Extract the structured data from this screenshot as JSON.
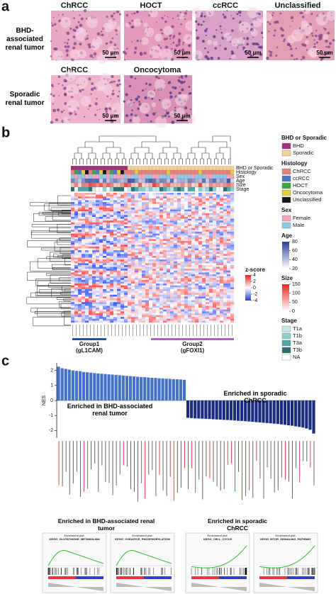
{
  "panel_a": {
    "label": "a",
    "row1": {
      "label": "BHD-associated renal tumor",
      "columns": [
        "ChRCC",
        "HOCT",
        "ccRCC",
        "Unclassified"
      ]
    },
    "row2": {
      "label": "Sporadic renal tumor",
      "columns": [
        "ChRCC",
        "Oncocytoma"
      ]
    },
    "scale_bar": "50 μm"
  },
  "panel_b": {
    "label": "b",
    "annotation_rows": [
      "BHD or Sporadic",
      "Histology",
      "Sex",
      "Age",
      "Size",
      "Stage"
    ],
    "groups": [
      {
        "name": "Group1",
        "gene": "(gL1CAM)",
        "color": "#1f4fa8"
      },
      {
        "name": "Group2",
        "gene": "(gFOXI1)",
        "color": "#b05fc4"
      }
    ],
    "zscore": {
      "title": "z-score",
      "ticks": [
        4,
        2,
        0,
        -2,
        -4
      ]
    },
    "legend": [
      {
        "title": "BHD or Sporadic",
        "items": [
          {
            "name": "BHD",
            "color": "#a0307a"
          },
          {
            "name": "Sporadic",
            "color": "#f1d59a"
          }
        ]
      },
      {
        "title": "Histology",
        "items": [
          {
            "name": "ChRCC",
            "color": "#e6827a"
          },
          {
            "name": "ccRCC",
            "color": "#4a78c4"
          },
          {
            "name": "HOCT",
            "color": "#3fa34a"
          },
          {
            "name": "Oncocytoma",
            "color": "#e3cd3a"
          },
          {
            "name": "Unclassified",
            "color": "#151515"
          }
        ]
      },
      {
        "title": "Sex",
        "items": [
          {
            "name": "Female",
            "color": "#f3a6c0"
          },
          {
            "name": "Male",
            "color": "#8ec9ec"
          }
        ]
      },
      {
        "title": "Age",
        "ticks": [
          80,
          60,
          40,
          20
        ],
        "color": "#2a3f9a"
      },
      {
        "title": "Size",
        "ticks": [
          150,
          100,
          50,
          0
        ],
        "color": "#e8251f"
      },
      {
        "title": "Stage",
        "items": [
          {
            "name": "T1a",
            "color": "#c8e8e6"
          },
          {
            "name": "T1b",
            "color": "#8fcfcc"
          },
          {
            "name": "T3a",
            "color": "#4ea7a5"
          },
          {
            "name": "T3b",
            "color": "#2f6f6e"
          },
          {
            "name": "NA",
            "color": "#ffffff"
          }
        ]
      }
    ]
  },
  "panel_c": {
    "label": "c",
    "nes": {
      "axis_label": "NES",
      "ylim": [
        -2.5,
        2.5
      ],
      "yticks": [
        2,
        1,
        0,
        -1,
        -2
      ],
      "bhd": {
        "label": "Enriched in BHD-associated renal tumor",
        "color": "#4472c4",
        "values": [
          2.25,
          2.15,
          2.1,
          2.05,
          2.0,
          1.97,
          1.95,
          1.9,
          1.88,
          1.85,
          1.82,
          1.8,
          1.78,
          1.76,
          1.74,
          1.72,
          1.7,
          1.68,
          1.66,
          1.64,
          1.62,
          1.6,
          1.58,
          1.56,
          1.55,
          1.53,
          1.51,
          1.5,
          1.48,
          1.47,
          1.45,
          1.44,
          1.42,
          1.41,
          1.4,
          1.38
        ]
      },
      "sporadic": {
        "label": "Enriched in sporadic ChRCC",
        "color": "#1b2d80",
        "values": [
          -1.15,
          -1.17,
          -1.19,
          -1.2,
          -1.21,
          -1.22,
          -1.23,
          -1.25,
          -1.26,
          -1.27,
          -1.29,
          -1.3,
          -1.31,
          -1.33,
          -1.35,
          -1.36,
          -1.38,
          -1.4,
          -1.42,
          -1.44,
          -1.46,
          -1.48,
          -1.5,
          -1.52,
          -1.54,
          -1.56,
          -1.59,
          -1.62,
          -1.65,
          -1.68,
          -1.72,
          -1.76,
          -1.8,
          -1.86,
          -1.95,
          -2.2
        ]
      }
    },
    "gsea": {
      "bhd_label": "Enriched in BHD-associated renal tumor",
      "sporadic_label": "Enriched in sporadic ChRCC",
      "plots": [
        {
          "heading": "Enrichment plot:",
          "name": "KEGG_GLUTATHIONE_METABOLISM"
        },
        {
          "heading": "Enrichment plot:",
          "name": "KEGG_OXIDATIVE_PHOSPHORYLATION"
        },
        {
          "heading": "Enrichment plot:",
          "name": "KEGG_CELL_CYCLE"
        },
        {
          "heading": "Enrichment plot:",
          "name": "KEGG_MTOR_SIGNALING_PATHWAY"
        }
      ]
    }
  }
}
